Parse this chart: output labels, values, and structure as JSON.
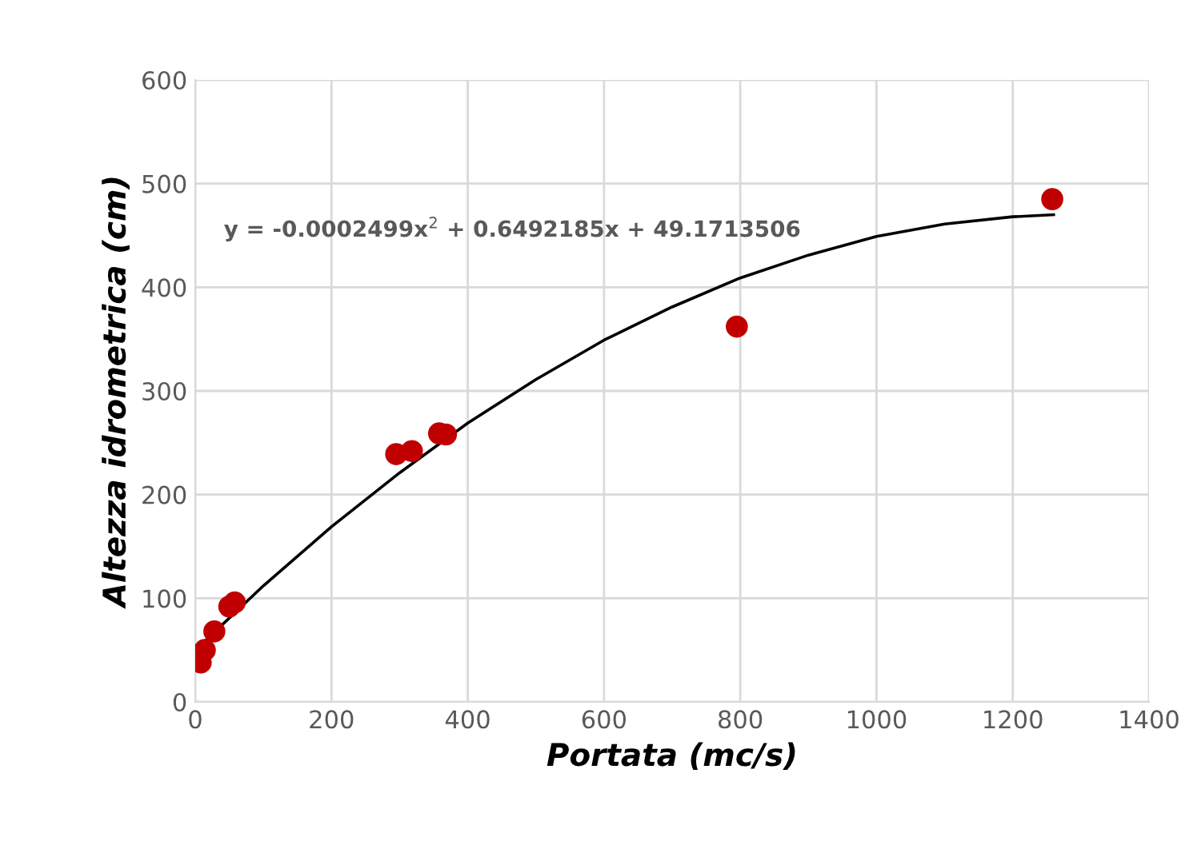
{
  "chart_data": {
    "type": "scatter",
    "xlabel": "Portata (mc/s)",
    "ylabel": "Altezza idrometrica (cm)",
    "x": [
      8,
      14,
      28,
      50,
      58,
      295,
      318,
      358,
      368,
      795,
      1258
    ],
    "series": [
      {
        "color": "#c00000",
        "marker": "circle",
        "values": [
          38,
          50,
          68,
          92,
          96,
          239,
          242,
          259,
          258,
          362,
          485
        ]
      },
      {
        "type": "line",
        "color": "#000000",
        "line_style": "solid",
        "x": [
          10,
          100,
          200,
          300,
          400,
          500,
          600,
          700,
          800,
          900,
          1000,
          1100,
          1200,
          1260
        ],
        "values": [
          56,
          112,
          169,
          221,
          269,
          311,
          349,
          381,
          409,
          431,
          449,
          461,
          468,
          470
        ]
      }
    ],
    "annotations": [
      "y = -0.0002499x$^{2}$ + 0.6492185x + 49.1713506"
    ],
    "xlim": [
      0,
      1400
    ],
    "xticks": [
      0,
      200,
      400,
      600,
      800,
      1000,
      1200,
      1400
    ],
    "ylim": [
      0,
      600
    ],
    "yticks": [
      0,
      100,
      200,
      300,
      400,
      500,
      600
    ],
    "grid": true
  }
}
